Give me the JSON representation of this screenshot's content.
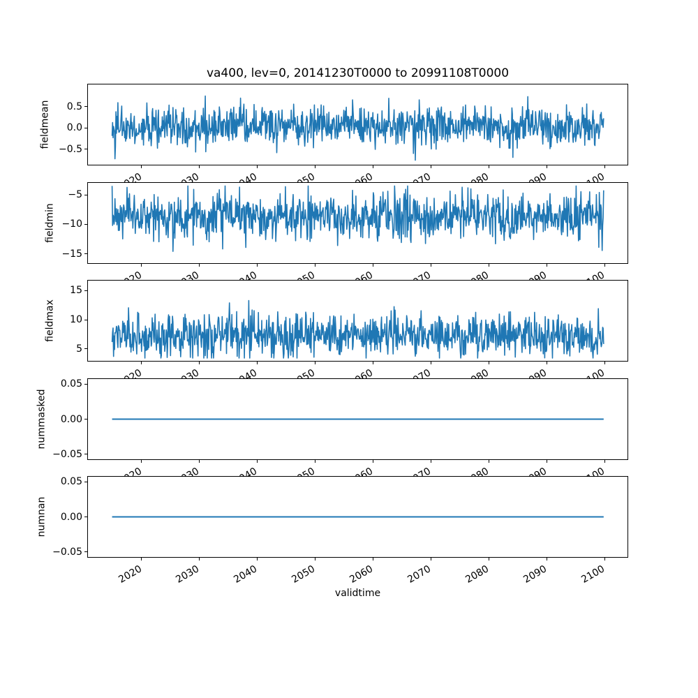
{
  "figure": {
    "background": "#ffffff"
  },
  "chart_data": {
    "type": "line",
    "title": "va400, lev=0, 20141230T0000 to 20991108T0000",
    "xlabel": "validtime",
    "line_color": "#1f77b4",
    "grid": false,
    "legend": null,
    "x_data_range": [
      2014.99,
      2099.86
    ],
    "xlim": [
      2010.7,
      2104.1
    ],
    "xticks": [
      2020,
      2030,
      2040,
      2050,
      2060,
      2070,
      2080,
      2090,
      2100
    ],
    "xtick_labels": [
      "2020",
      "2030",
      "2040",
      "2050",
      "2060",
      "2070",
      "2080",
      "2090",
      "2100"
    ],
    "subplots": [
      {
        "ylabel": "fieldmean",
        "ylim": [
          -0.88,
          1.03
        ],
        "ytick_values": [
          0.5,
          0.0,
          -0.5
        ],
        "ytick_labels": [
          "0.5",
          "0.0",
          "−0.5"
        ],
        "series": {
          "kind": "noisy",
          "n": 1019,
          "mean": 0.03,
          "std": 0.23,
          "clip_min": -0.79,
          "clip_max": 0.94,
          "spike_prob": 0.015,
          "spike_scale": 1.7,
          "seed": 42
        }
      },
      {
        "ylabel": "fieldmin",
        "ylim": [
          -16.7,
          -2.86
        ],
        "ytick_values": [
          -5,
          -10,
          -15
        ],
        "ytick_labels": [
          "−5",
          "−10",
          "−15"
        ],
        "series": {
          "kind": "noisy",
          "n": 1019,
          "mean": -8.6,
          "std": 1.9,
          "clip_min": -16.1,
          "clip_max": -3.5,
          "spike_prob": 0.015,
          "spike_scale": 1.6,
          "seed": 7
        }
      },
      {
        "ylabel": "fieldmax",
        "ylim": [
          2.8,
          16.85
        ],
        "ytick_values": [
          15,
          10,
          5
        ],
        "ytick_labels": [
          "15",
          "10",
          "5"
        ],
        "series": {
          "kind": "noisy",
          "n": 1019,
          "mean": 7.4,
          "std": 1.9,
          "clip_min": 3.4,
          "clip_max": 16.2,
          "spike_prob": 0.015,
          "spike_scale": 1.6,
          "seed": 1234
        }
      },
      {
        "ylabel": "nummasked",
        "ylim": [
          -0.058,
          0.058
        ],
        "ytick_values": [
          0.05,
          0.0,
          -0.05
        ],
        "ytick_labels": [
          "0.05",
          "0.00",
          "−0.05"
        ],
        "series": {
          "kind": "constant",
          "value": 0.0
        }
      },
      {
        "ylabel": "numnan",
        "ylim": [
          -0.058,
          0.058
        ],
        "ytick_values": [
          0.05,
          0.0,
          -0.05
        ],
        "ytick_labels": [
          "0.05",
          "0.00",
          "−0.05"
        ],
        "series": {
          "kind": "constant",
          "value": 0.0
        }
      }
    ]
  }
}
